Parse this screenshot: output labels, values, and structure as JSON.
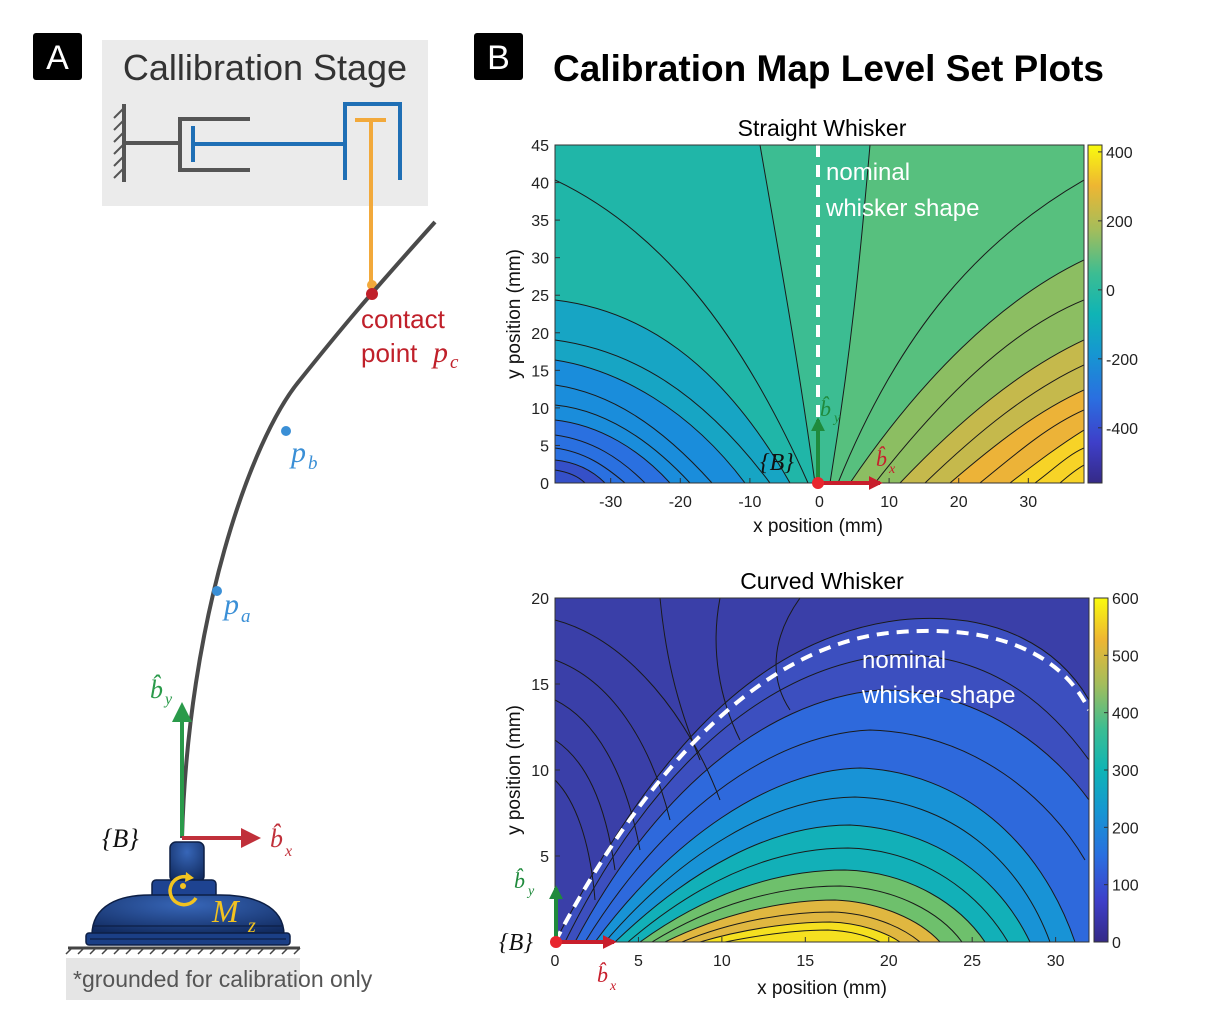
{
  "panel_a": {
    "badge": "A",
    "stage_title": "Callibration Stage",
    "contact_line1": "contact",
    "contact_line2": "point",
    "pc_label": "p",
    "pc_sub": "c",
    "pb_label": "p",
    "pb_sub": "b",
    "pa_label": "p",
    "pa_sub": "a",
    "by_label": "b̂",
    "by_sub": "y",
    "bx_label": "b̂",
    "bx_sub": "x",
    "frame_label": "{B}",
    "moment_label": "M",
    "moment_sub": "z",
    "footnote": "*grounded for calibration only",
    "colors": {
      "whisker": "#444444",
      "contact": "#c0202a",
      "point": "#3a8fd6",
      "by": "#2a9a4a",
      "bx": "#c0303a",
      "stage_blue": "#1f6fb5",
      "stage_orange": "#f2a93b",
      "base": "#1b3f86"
    }
  },
  "panel_b": {
    "badge": "B",
    "title": "Calibration Map Level Set Plots",
    "overlay_line1": "nominal",
    "overlay_line2": "whisker shape",
    "frame_label": "{B}",
    "by_label": "b̂",
    "by_sub": "y",
    "bx_label": "b̂",
    "bx_sub": "x"
  },
  "chart_data": [
    {
      "type": "heatmap",
      "title": "Straight Whisker",
      "xlabel": "x position (mm)",
      "ylabel": "y position (mm)",
      "xlim": [
        -38,
        38
      ],
      "ylim": [
        0,
        45
      ],
      "xticks": [
        -30,
        -20,
        -10,
        0,
        10,
        20,
        30
      ],
      "yticks": [
        0,
        5,
        10,
        15,
        20,
        25,
        30,
        35,
        40,
        45
      ],
      "colorbar": {
        "min": -560,
        "max": 420,
        "ticks": [
          400,
          200,
          0,
          -200,
          -400
        ]
      },
      "colormap": "parula",
      "grid": false
    },
    {
      "type": "heatmap",
      "title": "Curved Whisker",
      "xlabel": "x position (mm)",
      "ylabel": "y position (mm)",
      "xlim": [
        0,
        32
      ],
      "ylim": [
        0,
        20
      ],
      "xticks": [
        0,
        5,
        10,
        15,
        20,
        25,
        30
      ],
      "yticks": [
        5,
        10,
        15,
        20
      ],
      "colorbar": {
        "min": 0,
        "max": 600,
        "ticks": [
          600,
          500,
          400,
          300,
          200,
          100,
          0
        ]
      },
      "colormap": "parula",
      "grid": false
    }
  ]
}
